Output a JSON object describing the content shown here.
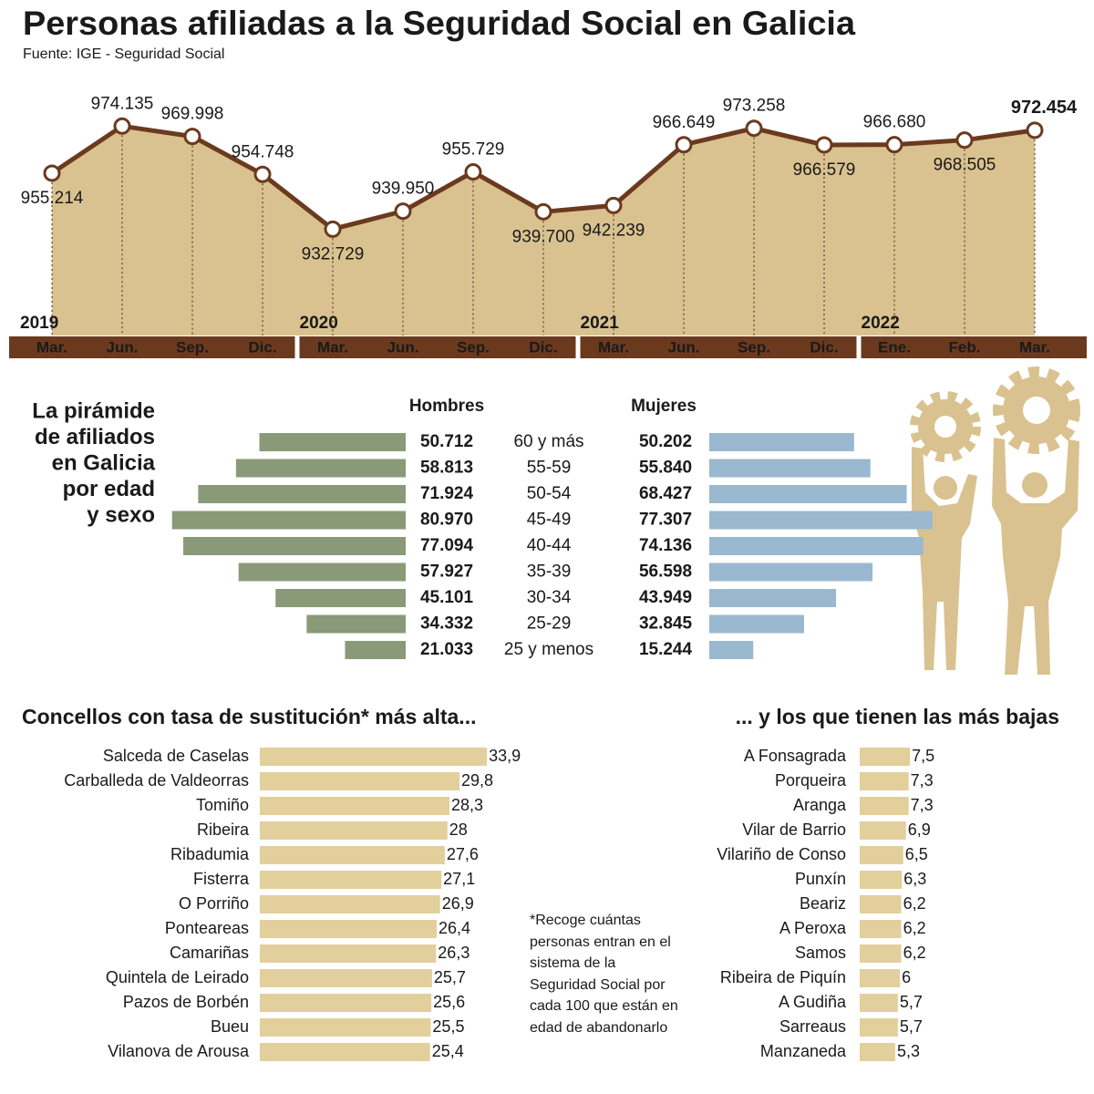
{
  "chart_data": [
    {
      "type": "line",
      "title": "Personas afiliadas a la Seguridad Social en Galicia",
      "subtitle": "Fuente: IGE - Seguridad Social",
      "categories": [
        "Mar.",
        "Jun.",
        "Sep.",
        "Dic.",
        "Mar.",
        "Jun.",
        "Sep.",
        "Dic.",
        "Mar.",
        "Jun.",
        "Sep.",
        "Dic.",
        "Ene.",
        "Feb.",
        "Mar."
      ],
      "years": [
        "2019",
        null,
        null,
        null,
        "2020",
        null,
        null,
        null,
        "2021",
        null,
        null,
        null,
        "2022",
        null,
        null
      ],
      "values": [
        955214,
        974135,
        969998,
        954748,
        932729,
        939950,
        955729,
        939700,
        942239,
        966649,
        973258,
        966579,
        966680,
        968505,
        972454
      ],
      "value_labels": [
        "955.214",
        "974.135",
        "969.998",
        "954.748",
        "932.729",
        "939.950",
        "955.729",
        "939.700",
        "942.239",
        "966.649",
        "973.258",
        "966.579",
        "966.680",
        "968.505",
        "972.454"
      ],
      "ylim": [
        890000,
        990000
      ],
      "color": "#6b3a1e",
      "fill": "#d9c28f"
    },
    {
      "type": "pyramid",
      "title": [
        "La pirámide",
        "de afiliados",
        "en Galicia",
        "por edad",
        "y sexo"
      ],
      "categories": [
        "60 y más",
        "55-59",
        "50-54",
        "45-49",
        "40-44",
        "35-39",
        "30-34",
        "25-29",
        "25 y menos"
      ],
      "series": [
        {
          "name": "Hombres",
          "color": "#8a9a78",
          "values": [
            50712,
            58813,
            71924,
            80970,
            77094,
            57927,
            45101,
            34332,
            21033
          ],
          "value_labels": [
            "50.712",
            "58.813",
            "71.924",
            "80.970",
            "77.094",
            "57.927",
            "45.101",
            "34.332",
            "21.033"
          ]
        },
        {
          "name": "Mujeres",
          "color": "#9ab8cf",
          "values": [
            50202,
            55840,
            68427,
            77307,
            74136,
            56598,
            43949,
            32845,
            15244
          ],
          "value_labels": [
            "50.202",
            "55.840",
            "68.427",
            "77.307",
            "74.136",
            "56.598",
            "43.949",
            "32.845",
            "15.244"
          ]
        }
      ],
      "xlim": [
        0,
        85000
      ]
    },
    {
      "type": "hbar",
      "title": "Concellos con tasa de sustitución* más alta...",
      "categories": [
        "Salceda de Caselas",
        "Carballeda de Valdeorras",
        "Tomiño",
        "Ribeira",
        "Ribadumia",
        "Fisterra",
        "O Porriño",
        "Ponteareas",
        "Camariñas",
        "Quintela de Leirado",
        "Pazos de Borbén",
        "Bueu",
        "Vilanova de Arousa"
      ],
      "values": [
        33.9,
        29.8,
        28.3,
        28,
        27.6,
        27.1,
        26.9,
        26.4,
        26.3,
        25.7,
        25.6,
        25.5,
        25.4
      ],
      "value_labels": [
        "33,9",
        "29,8",
        "28,3",
        "28",
        "27,6",
        "27,1",
        "26,9",
        "26,4",
        "26,3",
        "25,7",
        "25,6",
        "25,5",
        "25,4"
      ],
      "color": "#e2cf9c",
      "xlim": [
        0,
        40
      ],
      "note": "*Recoge cuántas personas entran en el sistema de la Seguridad Social por cada 100 que están en edad de abandonarlo"
    },
    {
      "type": "hbar",
      "title": "... y los que tienen las más bajas",
      "categories": [
        "A Fonsagrada",
        "Porqueira",
        "Aranga",
        "Vilar de Barrio",
        "Vilariño de Conso",
        "Punxín",
        "Beariz",
        "A Peroxa",
        "Samos",
        "Ribeira de Piquín",
        "A Gudiña",
        "Sarreaus",
        "Manzaneda"
      ],
      "values": [
        7.5,
        7.3,
        7.3,
        6.9,
        6.5,
        6.3,
        6.2,
        6.2,
        6.2,
        6,
        5.7,
        5.7,
        5.3
      ],
      "value_labels": [
        "7,5",
        "7,3",
        "7,3",
        "6,9",
        "6,5",
        "6,3",
        "6,2",
        "6,2",
        "6,2",
        "6",
        "5,7",
        "5,7",
        "5,3"
      ],
      "color": "#e2cf9c",
      "xlim": [
        0,
        40
      ]
    }
  ]
}
